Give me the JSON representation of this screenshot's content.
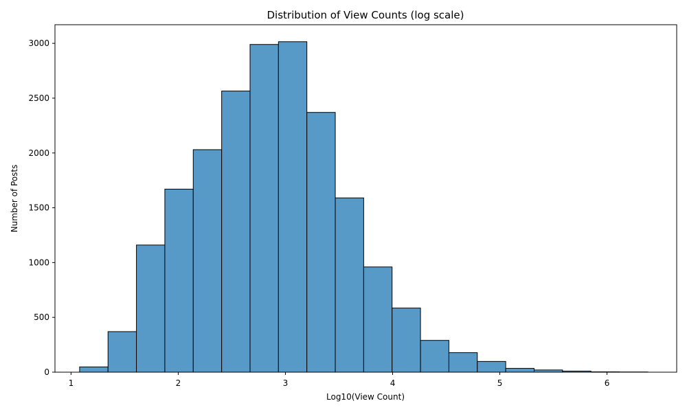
{
  "chart_data": {
    "type": "bar",
    "title": "Distribution of View Counts (log scale)",
    "xlabel": "Log10(View Count)",
    "ylabel": "Number of Posts",
    "xlim": [
      0.85,
      6.65
    ],
    "ylim": [
      0,
      3170
    ],
    "xticks": [
      1,
      2,
      3,
      4,
      5,
      6
    ],
    "yticks": [
      0,
      500,
      1000,
      1500,
      2000,
      2500,
      3000
    ],
    "bar_color": "#5799c7",
    "edge_color": "#000000",
    "grid": false,
    "bins": [
      {
        "start": 1.08,
        "end": 1.345,
        "count": 48
      },
      {
        "start": 1.345,
        "end": 1.61,
        "count": 370
      },
      {
        "start": 1.61,
        "end": 1.875,
        "count": 1160
      },
      {
        "start": 1.875,
        "end": 2.14,
        "count": 1670
      },
      {
        "start": 2.14,
        "end": 2.405,
        "count": 2030
      },
      {
        "start": 2.405,
        "end": 2.67,
        "count": 2565
      },
      {
        "start": 2.67,
        "end": 2.935,
        "count": 2990
      },
      {
        "start": 2.935,
        "end": 3.2,
        "count": 3015
      },
      {
        "start": 3.2,
        "end": 3.465,
        "count": 2370
      },
      {
        "start": 3.465,
        "end": 3.73,
        "count": 1590
      },
      {
        "start": 3.73,
        "end": 3.995,
        "count": 960
      },
      {
        "start": 3.995,
        "end": 4.26,
        "count": 585
      },
      {
        "start": 4.26,
        "end": 4.525,
        "count": 290
      },
      {
        "start": 4.525,
        "end": 4.79,
        "count": 178
      },
      {
        "start": 4.79,
        "end": 5.055,
        "count": 98
      },
      {
        "start": 5.055,
        "end": 5.32,
        "count": 35
      },
      {
        "start": 5.32,
        "end": 5.585,
        "count": 20
      },
      {
        "start": 5.585,
        "end": 5.85,
        "count": 10
      },
      {
        "start": 5.85,
        "end": 6.115,
        "count": 3
      },
      {
        "start": 6.115,
        "end": 6.38,
        "count": 2
      }
    ]
  }
}
